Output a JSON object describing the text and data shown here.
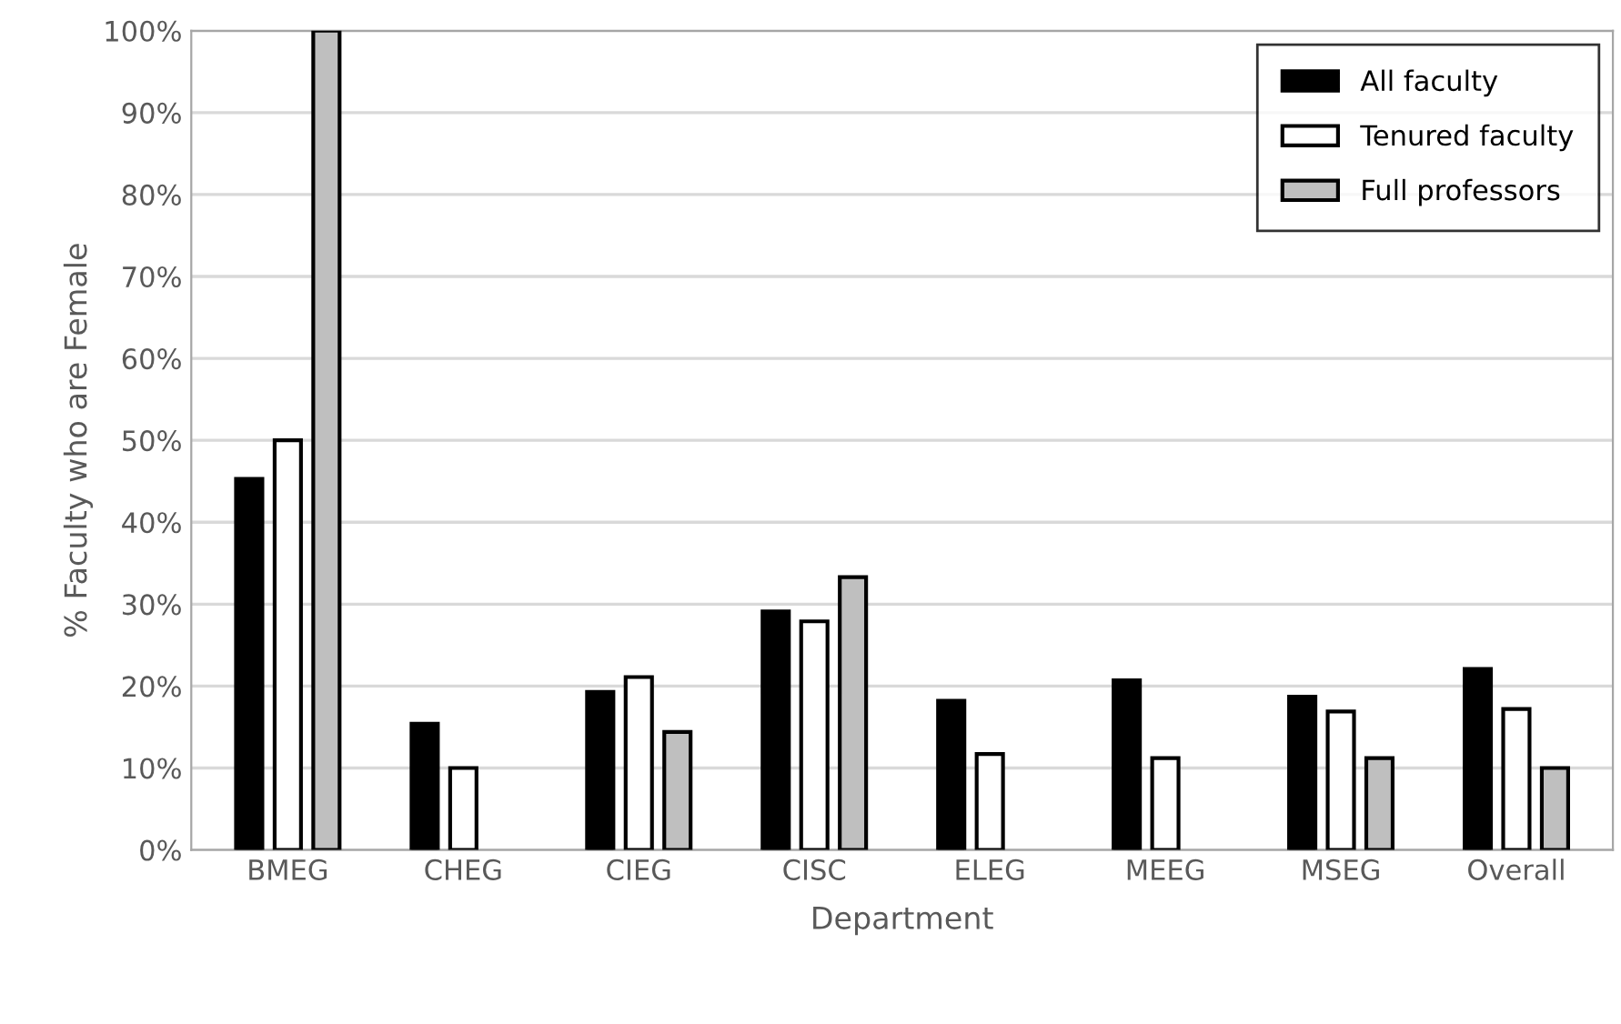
{
  "chart_data": {
    "type": "bar",
    "xlabel": "Department",
    "ylabel": "% Faculty who are Female",
    "categories": [
      "BMEG",
      "CHEG",
      "CIEG",
      "CISC",
      "ELEG",
      "MEEG",
      "MSEG",
      "Overall"
    ],
    "series": [
      {
        "name": "All faculty",
        "color": "#000000",
        "values": [
          45.3,
          15.4,
          19.3,
          29.1,
          18.2,
          20.7,
          18.7,
          22.1
        ]
      },
      {
        "name": "Tenured faculty",
        "color": "#ffffff",
        "values": [
          50,
          10,
          21.1,
          27.9,
          11.7,
          11.2,
          16.9,
          17.2
        ]
      },
      {
        "name": "Full professors",
        "color": "#bfbfbf",
        "values": [
          100,
          null,
          14.4,
          33.3,
          null,
          null,
          11.2,
          10
        ]
      }
    ],
    "ylim": [
      0,
      100
    ],
    "yticks": [
      {
        "value": 0,
        "label": "0%"
      },
      {
        "value": 10,
        "label": "10%"
      },
      {
        "value": 20,
        "label": "20%"
      },
      {
        "value": 30,
        "label": "30%"
      },
      {
        "value": 40,
        "label": "40%"
      },
      {
        "value": 50,
        "label": "50%"
      },
      {
        "value": 60,
        "label": "60%"
      },
      {
        "value": 70,
        "label": "70%"
      },
      {
        "value": 80,
        "label": "80%"
      },
      {
        "value": 90,
        "label": "90%"
      },
      {
        "value": 100,
        "label": "100%"
      }
    ],
    "grid": "y",
    "legend": "top right"
  }
}
